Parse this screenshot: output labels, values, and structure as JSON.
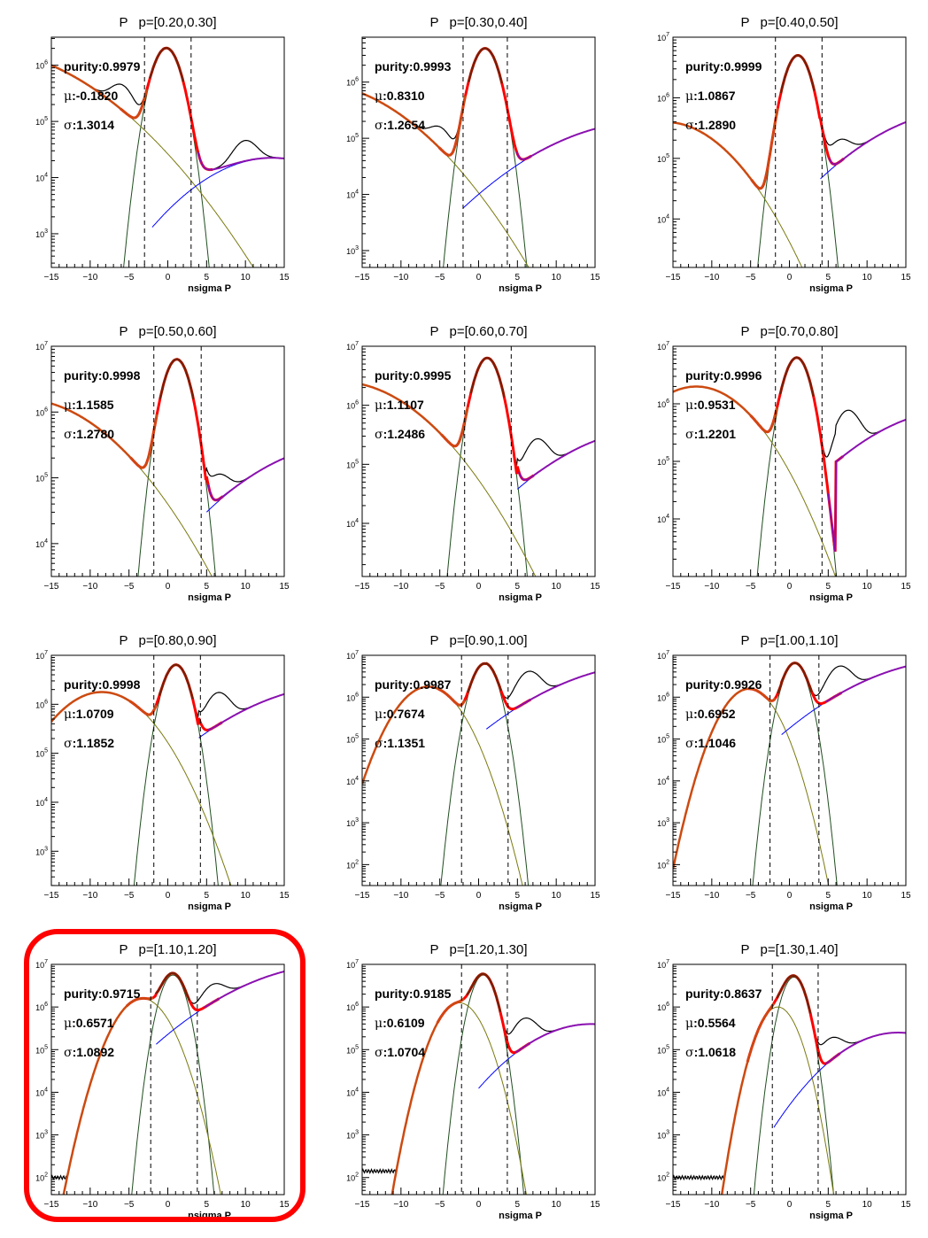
{
  "highlight": {
    "panel_index": 9,
    "color": "#ff0000"
  },
  "colors": {
    "data": "#000000",
    "total_fit": "#ff0000",
    "signal_fit": "#7a1f00",
    "left_bkg": "#cc4a10",
    "right_bkg": "#8a10b0",
    "proton_gauss": "#1f4d1f",
    "olive_gauss": "#7a7a10",
    "blue_tail": "#0000ff",
    "cut_line": "#000000"
  },
  "chart_data": [
    {
      "type": "line",
      "particle": "P",
      "title_range": "p=[0.20,0.30]",
      "xlabel": "nsigma P",
      "xlim": [
        -15,
        15
      ],
      "xticks": [
        -15,
        -10,
        -5,
        0,
        5,
        10,
        15
      ],
      "ylim_log10": [
        2.4,
        6.5
      ],
      "ydecades": [
        3,
        4,
        5,
        6
      ],
      "purity_label": "purity:0.9979",
      "mu_label": ":-0.1820",
      "sigma_label": ":1.3014",
      "cuts": [
        -3.0,
        3.0
      ],
      "signal_mu": -0.18,
      "signal_sigma": 1.3,
      "signal_peak_log10": 6.3,
      "left_bkg": {
        "mu": -25,
        "sigma": 8.5,
        "peak_log10": 6.3
      },
      "right_bkg": {
        "mu": 13.5,
        "sigma": 6.5,
        "peak_log10": 4.35,
        "start": -2
      },
      "data_offsets": [
        {
          "x": -6,
          "dy": 0.25
        },
        {
          "x": 10,
          "dy": 0.12
        }
      ]
    },
    {
      "type": "line",
      "particle": "P",
      "title_range": "p=[0.30,0.40]",
      "xlabel": "nsigma P",
      "xlim": [
        -15,
        15
      ],
      "xticks": [
        -15,
        -10,
        -5,
        0,
        5,
        10,
        15
      ],
      "ylim_log10": [
        2.7,
        6.8
      ],
      "ydecades": [
        3,
        4,
        5,
        6
      ],
      "purity_label": "purity:0.9993",
      "mu_label": ":0.8310",
      "sigma_label": ":1.2654",
      "cuts": [
        -2.0,
        3.7
      ],
      "signal_mu": 0.83,
      "signal_sigma": 1.27,
      "signal_peak_log10": 6.6,
      "left_bkg": {
        "mu": -22,
        "sigma": 7.3,
        "peak_log10": 6.0
      },
      "right_bkg": {
        "mu": 22,
        "sigma": 9,
        "peak_log10": 5.3,
        "start": -2
      },
      "data_offsets": [
        {
          "x": -5,
          "dy": 0.15
        }
      ]
    },
    {
      "type": "line",
      "particle": "P",
      "title_range": "p=[0.40,0.50]",
      "xlabel": "nsigma P",
      "xlim": [
        -15,
        15
      ],
      "xticks": [
        -15,
        -10,
        -5,
        0,
        5,
        10,
        15
      ],
      "ylim_log10": [
        3.2,
        7.0
      ],
      "ydecades": [
        4,
        5,
        6,
        7
      ],
      "purity_label": "purity:0.9999",
      "mu_label": ":1.0867",
      "sigma_label": ":1.2890",
      "cuts": [
        -1.8,
        4.2
      ],
      "signal_mu": 1.09,
      "signal_sigma": 1.29,
      "signal_peak_log10": 6.7,
      "left_bkg": {
        "mu": -16,
        "sigma": 5.3,
        "peak_log10": 5.6
      },
      "right_bkg": {
        "mu": 23,
        "sigma": 8.3,
        "peak_log10": 5.8,
        "start": 4
      },
      "data_offsets": [
        {
          "x": 6.5,
          "dy": 0.12
        }
      ]
    },
    {
      "type": "line",
      "particle": "P",
      "title_range": "p=[0.50,0.60]",
      "xlabel": "nsigma P",
      "xlim": [
        -15,
        15
      ],
      "xticks": [
        -15,
        -10,
        -5,
        0,
        5,
        10,
        15
      ],
      "ylim_log10": [
        3.5,
        7.0
      ],
      "ydecades": [
        4,
        5,
        6,
        7
      ],
      "purity_label": "purity:0.9998",
      "mu_label": ":1.1585",
      "sigma_label": ":1.2780",
      "cuts": [
        -1.8,
        4.3
      ],
      "signal_mu": 1.16,
      "signal_sigma": 1.28,
      "signal_peak_log10": 6.8,
      "left_bkg": {
        "mu": -19,
        "sigma": 7.0,
        "peak_log10": 6.2
      },
      "right_bkg": {
        "mu": 23,
        "sigma": 8.3,
        "peak_log10": 5.5,
        "start": 5
      },
      "data_offsets": [
        {
          "x": 6.5,
          "dy": 0.15
        }
      ]
    },
    {
      "type": "line",
      "particle": "P",
      "title_range": "p=[0.60,0.70]",
      "xlabel": "nsigma P",
      "xlim": [
        -15,
        15
      ],
      "xticks": [
        -15,
        -10,
        -5,
        0,
        5,
        10,
        15
      ],
      "ylim_log10": [
        3.1,
        7.0
      ],
      "ydecades": [
        4,
        5,
        6,
        7
      ],
      "purity_label": "purity:0.9995",
      "mu_label": ":1.1107",
      "sigma_label": ":1.2486",
      "cuts": [
        -1.8,
        4.2
      ],
      "signal_mu": 1.11,
      "signal_sigma": 1.25,
      "signal_peak_log10": 6.8,
      "left_bkg": {
        "mu": -18,
        "sigma": 6.5,
        "peak_log10": 6.4
      },
      "right_bkg": {
        "mu": 23,
        "sigma": 8.3,
        "peak_log10": 5.6,
        "start": 5
      },
      "data_offsets": [
        {
          "x": 7.5,
          "dy": 0.45
        }
      ]
    },
    {
      "type": "line",
      "particle": "P",
      "title_range": "p=[0.70,0.80]",
      "xlabel": "nsigma P",
      "xlim": [
        -15,
        15
      ],
      "xticks": [
        -15,
        -10,
        -5,
        0,
        5,
        10,
        15
      ],
      "ylim_log10": [
        3.0,
        7.0
      ],
      "ydecades": [
        4,
        5,
        6,
        7
      ],
      "purity_label": "purity:0.9996",
      "mu_label": ":0.9531",
      "sigma_label": ":1.2201",
      "cuts": [
        -1.8,
        4.2
      ],
      "signal_mu": 0.95,
      "signal_sigma": 1.22,
      "signal_peak_log10": 6.8,
      "left_bkg": {
        "mu": -12,
        "sigma": 4.6,
        "peak_log10": 6.3
      },
      "right_bkg": {
        "mu": 22,
        "sigma": 7.8,
        "peak_log10": 5.9,
        "start": 6
      },
      "data_offsets": [
        {
          "x": 7.5,
          "dy": 0.65
        }
      ]
    },
    {
      "type": "line",
      "particle": "P",
      "title_range": "p=[0.80,0.90]",
      "xlabel": "nsigma P",
      "xlim": [
        -15,
        15
      ],
      "xticks": [
        -15,
        -10,
        -5,
        0,
        5,
        10,
        15
      ],
      "ylim_log10": [
        2.3,
        7.0
      ],
      "ydecades": [
        3,
        4,
        5,
        6,
        7
      ],
      "purity_label": "purity:0.9998",
      "mu_label": ":1.0709",
      "sigma_label": ":1.1852",
      "cuts": [
        -1.8,
        4.2
      ],
      "signal_mu": 1.07,
      "signal_sigma": 1.19,
      "signal_peak_log10": 6.8,
      "left_bkg": {
        "mu": -8.5,
        "sigma": 3.9,
        "peak_log10": 6.25
      },
      "right_bkg": {
        "mu": 23,
        "sigma": 8.5,
        "peak_log10": 6.4,
        "start": 4
      },
      "data_offsets": [
        {
          "x": 6.5,
          "dy": 0.55
        }
      ]
    },
    {
      "type": "line",
      "particle": "P",
      "title_range": "p=[0.90,1.00]",
      "xlabel": "nsigma P",
      "xlim": [
        -15,
        15
      ],
      "xticks": [
        -15,
        -10,
        -5,
        0,
        5,
        10,
        15
      ],
      "ylim_log10": [
        1.5,
        7.0
      ],
      "ydecades": [
        2,
        3,
        4,
        5,
        6,
        7
      ],
      "purity_label": "purity:0.9987",
      "mu_label": ":0.7674",
      "sigma_label": ":1.1351",
      "cuts": [
        -2.2,
        3.8
      ],
      "signal_mu": 0.77,
      "signal_sigma": 1.14,
      "signal_peak_log10": 6.8,
      "left_bkg": {
        "mu": -6.5,
        "sigma": 2.6,
        "peak_log10": 6.25
      },
      "right_bkg": {
        "mu": 23,
        "sigma": 8.2,
        "peak_log10": 6.8,
        "start": 1
      },
      "floor_log10": 2.05,
      "data_offsets": [
        {
          "x": 6.5,
          "dy": 0.6
        }
      ]
    },
    {
      "type": "line",
      "particle": "P",
      "title_range": "p=[1.00,1.10]",
      "xlabel": "nsigma P",
      "xlim": [
        -15,
        15
      ],
      "xticks": [
        -15,
        -10,
        -5,
        0,
        5,
        10,
        15
      ],
      "ylim_log10": [
        1.5,
        7.0
      ],
      "ydecades": [
        2,
        3,
        4,
        5,
        6,
        7
      ],
      "purity_label": "purity:0.9926",
      "mu_label": ":0.6952",
      "sigma_label": ":1.1046",
      "cuts": [
        -2.5,
        3.8
      ],
      "signal_mu": 0.7,
      "signal_sigma": 1.1,
      "signal_peak_log10": 6.8,
      "left_bkg": {
        "mu": -5.2,
        "sigma": 2.2,
        "peak_log10": 6.2
      },
      "right_bkg": {
        "mu": 22,
        "sigma": 8.0,
        "peak_log10": 6.9,
        "start": -1
      },
      "floor_log10": 2.0,
      "data_offsets": [
        {
          "x": 6.5,
          "dy": 0.55
        }
      ]
    },
    {
      "type": "line",
      "particle": "P",
      "title_range": "p=[1.10,1.20]",
      "xlabel": "nsigma P",
      "xlim": [
        -15,
        15
      ],
      "xticks": [
        -15,
        -10,
        -5,
        0,
        5,
        10,
        15
      ],
      "ylim_log10": [
        1.6,
        7.0
      ],
      "ydecades": [
        2,
        3,
        4,
        5,
        6,
        7
      ],
      "purity_label": "purity:0.9715",
      "mu_label": ":0.6571",
      "sigma_label": ":1.0892",
      "cuts": [
        -2.2,
        3.8
      ],
      "signal_mu": 0.66,
      "signal_sigma": 1.09,
      "signal_peak_log10": 6.75,
      "left_bkg": {
        "mu": -3.3,
        "sigma": 2.2,
        "peak_log10": 6.2
      },
      "right_bkg": {
        "mu": 22,
        "sigma": 8.0,
        "peak_log10": 7.0,
        "start": -1.5
      },
      "floor_log10": 2.0,
      "data_offsets": [
        {
          "x": 6.0,
          "dy": 0.2
        }
      ]
    },
    {
      "type": "line",
      "particle": "P",
      "title_range": "p=[1.20,1.30]",
      "xlabel": "nsigma P",
      "xlim": [
        -15,
        15
      ],
      "xticks": [
        -15,
        -10,
        -5,
        0,
        5,
        10,
        15
      ],
      "ylim_log10": [
        1.6,
        7.0
      ],
      "ydecades": [
        2,
        3,
        4,
        5,
        6,
        7
      ],
      "purity_label": "purity:0.9185",
      "mu_label": ":0.6109",
      "sigma_label": ":1.0704",
      "cuts": [
        -2.2,
        3.7
      ],
      "signal_mu": 0.61,
      "signal_sigma": 1.07,
      "signal_peak_log10": 6.75,
      "left_bkg": {
        "mu": -2.5,
        "sigma": 1.9,
        "peak_log10": 6.1
      },
      "right_bkg": {
        "mu": 14.5,
        "sigma": 5.5,
        "peak_log10": 5.6,
        "start": 0
      },
      "floor_log10": 2.15,
      "data_offsets": [
        {
          "x": 6.0,
          "dy": 0.55
        }
      ]
    },
    {
      "type": "line",
      "particle": "P",
      "title_range": "p=[1.30,1.40]",
      "xlabel": "nsigma P",
      "xlim": [
        -15,
        15
      ],
      "xticks": [
        -15,
        -10,
        -5,
        0,
        5,
        10,
        15
      ],
      "ylim_log10": [
        1.6,
        7.0
      ],
      "ydecades": [
        2,
        3,
        4,
        5,
        6,
        7
      ],
      "purity_label": "purity:0.8637",
      "mu_label": ":0.5564",
      "sigma_label": ":1.0618",
      "cuts": [
        -2.2,
        3.7
      ],
      "signal_mu": 0.56,
      "signal_sigma": 1.06,
      "signal_peak_log10": 6.7,
      "left_bkg": {
        "mu": -1.5,
        "sigma": 1.6,
        "peak_log10": 6.0
      },
      "right_bkg": {
        "mu": 14.0,
        "sigma": 5.0,
        "peak_log10": 5.4,
        "start": -2
      },
      "floor_log10": 2.0,
      "data_offsets": [
        {
          "x": 5.5,
          "dy": 0.35
        }
      ]
    }
  ]
}
